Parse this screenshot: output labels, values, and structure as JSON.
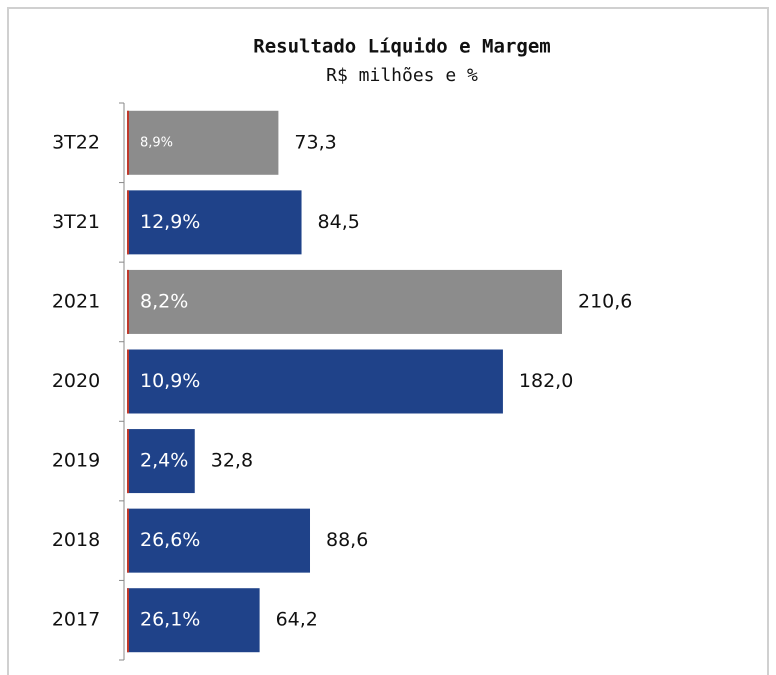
{
  "chart_data": {
    "type": "bar",
    "orientation": "horizontal",
    "title": "Resultado Líquido e Margem",
    "subtitle": "R$ milhões e %",
    "categories": [
      "3T22",
      "3T21",
      "2021",
      "2020",
      "2019",
      "2018",
      "2017"
    ],
    "values": [
      73.3,
      84.5,
      210.6,
      182.0,
      32.8,
      88.6,
      64.2
    ],
    "value_labels": [
      "73,3",
      "84,5",
      "210,6",
      "182,0",
      "32,8",
      "88,6",
      "64,2"
    ],
    "margin_labels": [
      "8,9%",
      "12,9%",
      "8,2%",
      "10,9%",
      "2,4%",
      "26,6%",
      "26,1%"
    ],
    "colors": [
      "#8c8c8c",
      "#1f4289",
      "#8c8c8c",
      "#1f4289",
      "#1f4289",
      "#1f4289",
      "#1f4289"
    ]
  }
}
